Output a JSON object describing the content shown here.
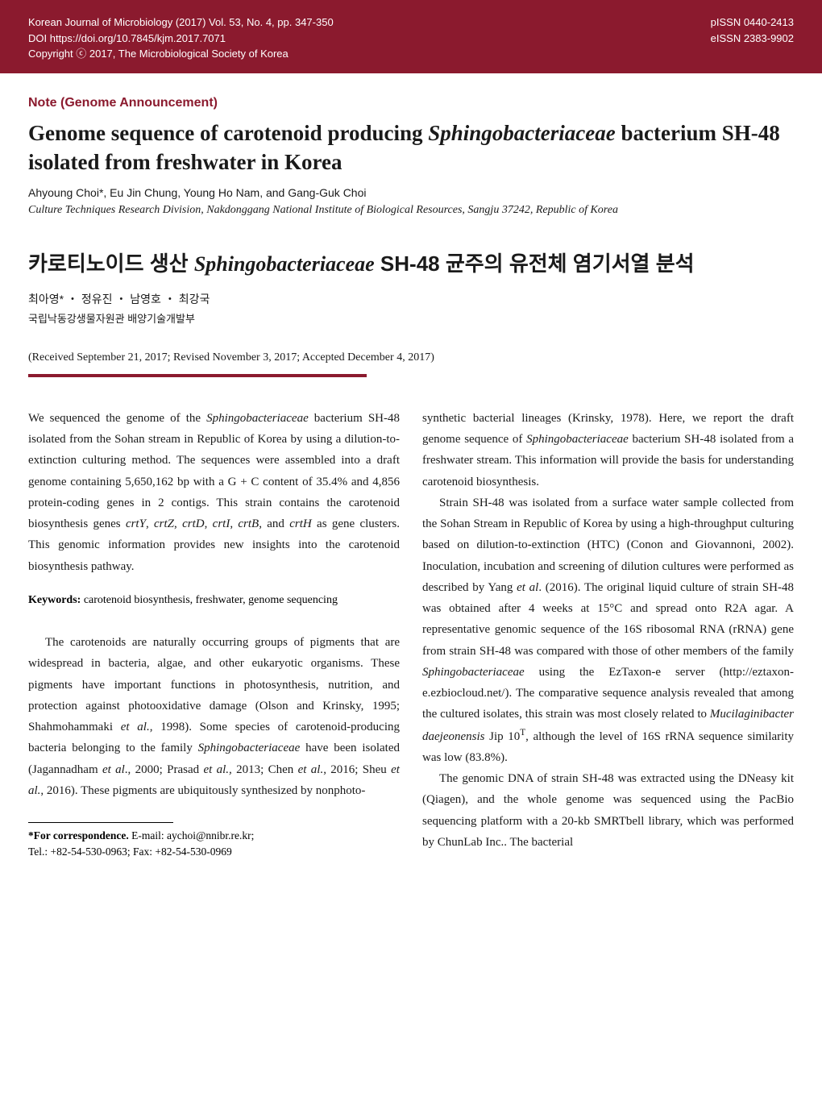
{
  "header": {
    "journal_line": "Korean Journal of Microbiology (2017) Vol. 53, No. 4, pp. 347-350",
    "doi_line": "DOI https://doi.org/10.7845/kjm.2017.7071",
    "copyright_line": "Copyright ⓒ 2017, The Microbiological Society of Korea",
    "pissn": "pISSN 0440-2413",
    "eissn": "eISSN 2383-9902",
    "bg_color": "#8b1a2e",
    "text_color": "#ffffff"
  },
  "note_label": "Note (Genome Announcement)",
  "title_en_1": "Genome sequence of carotenoid producing ",
  "title_en_italic": "Sphingobacteriaceae",
  "title_en_2": " bacterium SH-48 isolated from freshwater in Korea",
  "authors_en": "Ahyoung Choi*, Eu Jin Chung, Young Ho Nam, and Gang-Guk Choi",
  "affil_en": "Culture Techniques Research Division, Nakdonggang National Institute of Biological Resources, Sangju 37242, Republic of Korea",
  "title_ko_1": "카로티노이드 생산 ",
  "title_ko_italic": "Sphingobacteriaceae",
  "title_ko_2": " SH-48 균주의 유전체 염기서열 분석",
  "authors_ko": "최아영* ・ 정유진 ・ 남영호 ・ 최강국",
  "affil_ko": "국립낙동강생물자원관 배양기술개발부",
  "dates": "(Received September 21, 2017; Revised November 3, 2017; Accepted December 4, 2017)",
  "abstract": {
    "p1a": "We sequenced the genome of the ",
    "p1b": "Sphingobacteriaceae",
    "p1c": " bacterium SH-48 isolated from the Sohan stream in Republic of Korea by using a dilution-to-extinction culturing method. The sequences were assembled into a draft genome containing 5,650,162 bp with a G + C content of 35.4% and 4,856 protein-coding genes in 2 contigs. This strain contains the carotenoid biosynthesis genes ",
    "p1d": "crtY",
    "p1e": ", ",
    "p1f": "crtZ",
    "p1g": ", ",
    "p1h": "crtD",
    "p1i": ", ",
    "p1j": "crtI",
    "p1k": ", ",
    "p1l": "crtB",
    "p1m": ", and ",
    "p1n": "crtH",
    "p1o": " as gene clusters. This genomic information provides new insights into the carotenoid biosynthesis pathway."
  },
  "keywords_label": "Keywords:",
  "keywords_text": " carotenoid biosynthesis, freshwater, genome sequencing",
  "col1_body": {
    "a": "The carotenoids are naturally occurring groups of pigments that are widespread in bacteria, algae, and other eukaryotic organisms. These pigments have important functions in photo­synthesis, nutrition, and protection against photooxidative damage (Olson and Krinsky, 1995; Shahmohammaki ",
    "b": "et al.",
    "c": ", 1998). Some species of carotenoid-producing bacteria belonging to the family ",
    "d": "Sphingobacteriaceae",
    "e": " have been isolated (Jagannadham ",
    "f": "et al",
    "g": "., 2000; Prasad ",
    "h": "et al.,",
    "i": " 2013; Chen ",
    "j": "et al.",
    "k": ", 2016; Sheu ",
    "l": "et al.",
    "m": ", 2016). These pigments are ubiquitously synthesized by nonphoto-"
  },
  "correspondence": {
    "label": "*For correspondence.",
    "email": " E-mail: aychoi@nnibr.re.kr;",
    "tel": "Tel.: +82-54-530-0963;  Fax: +82-54-530-0969"
  },
  "col2_p1": {
    "a": "synthetic bacterial lineages (Krinsky, 1978). Here, we report the draft genome sequence of ",
    "b": "Sphingobacteriaceae",
    "c": " bacterium SH-48 isolated from a freshwater stream. This information will provide the basis for understanding carotenoid biosynthesis."
  },
  "col2_p2": {
    "a": "Strain SH-48 was isolated from a surface water sample collected from the Sohan Stream in Republic of Korea by using a high-throughput culturing based on dilution-to-extinction (HTC) (Conon and Giovannoni, 2002). Inoculation, incubation and screening of dilution cultures were performed as described by Yang ",
    "b": "et al",
    "c": ". (2016). The original liquid culture of strain SH-48 was obtained after 4 weeks at 15°C and spread onto R2A agar. A representative genomic sequence of the 16S ribosomal RNA (rRNA) gene from strain SH-48 was compared with those of other members of the family ",
    "d": "Sphingobacteriaceae",
    "e": " using the EzTaxon-e server (http://eztaxon-e.ezbiocloud.net/). The com­parative sequence analysis revealed that among the cultured isolates, this strain was most closely related to ",
    "f": "Mucilaginibacter daejeonensis",
    "g": " Jip 10",
    "h": "T",
    "i": ", although the level of 16S rRNA sequence similarity was low (83.8%)."
  },
  "col2_p3": {
    "a": "The genomic DNA of strain SH-48 was extracted using the DNeasy kit (Qiagen), and the whole genome was sequenced using the PacBio sequencing platform with a 20-kb SMRTbell library, which was performed by ChunLab Inc.. The bacterial"
  }
}
